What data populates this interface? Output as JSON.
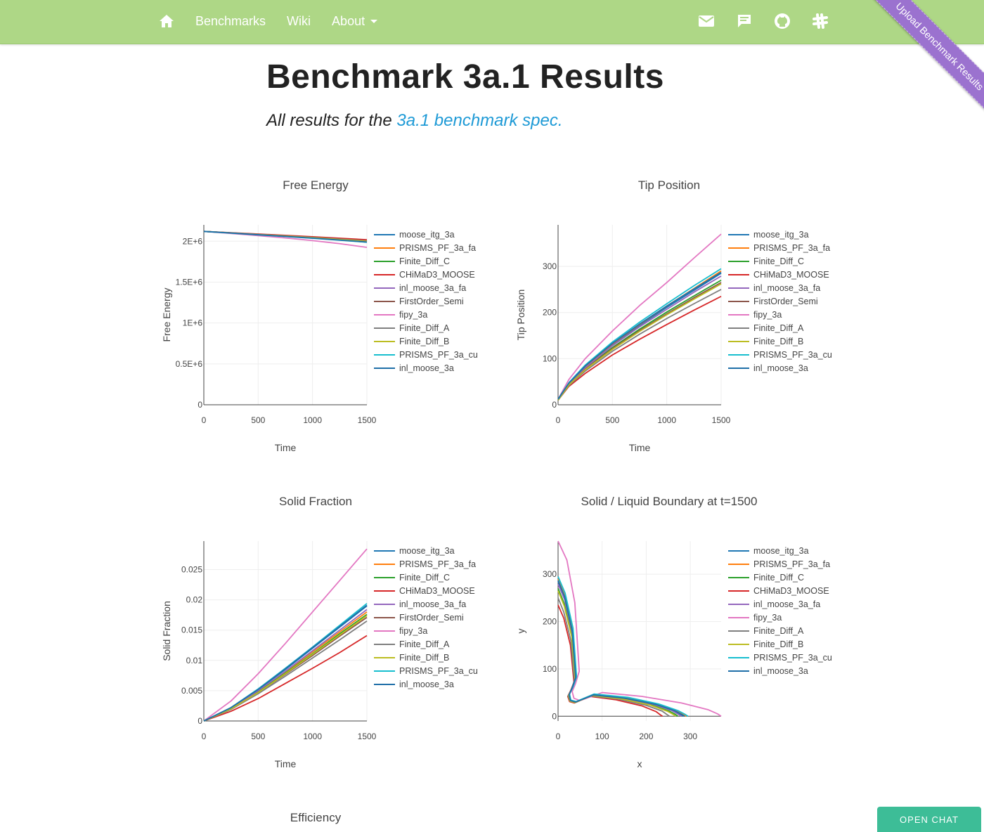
{
  "nav": {
    "home_icon": "home-icon",
    "links": [
      "Benchmarks",
      "Wiki",
      "About"
    ],
    "right_icons": [
      "mail-icon",
      "chat-icon",
      "github-icon",
      "slack-icon"
    ]
  },
  "ribbon": "Upload Benchmark Results",
  "header": {
    "title": "Benchmark 3a.1 Results",
    "subtitle_prefix": "All results for the ",
    "subtitle_link": "3a.1 benchmark spec."
  },
  "chat_button": "OPEN CHAT",
  "efficiency_title": "Efficiency",
  "colors": {
    "moose_itg_3a": "#1f77b4",
    "PRISMS_PF_3a_fa": "#ff7f0e",
    "Finite_Diff_C": "#2ca02c",
    "CHiMaD3_MOOSE": "#d62728",
    "inl_moose_3a_fa": "#9467bd",
    "FirstOrder_Semi": "#8c564b",
    "fipy_3a": "#e377c2",
    "Finite_Diff_A": "#7f7f7f",
    "Finite_Diff_B": "#bcbd22",
    "PRISMS_PF_3a_cu": "#17becf",
    "inl_moose_3a": "#1f6fa8"
  },
  "chart_data": [
    {
      "type": "line",
      "title": "Free Energy",
      "xlabel": "Time",
      "ylabel": "Free Energy",
      "xlim": [
        0,
        1500
      ],
      "ylim": [
        0,
        2200000
      ],
      "xticks": [
        "0",
        "500",
        "1000",
        "1500"
      ],
      "yticks": [
        "0",
        "0.5E+6",
        "1E+6",
        "1.5E+6",
        "2E+6"
      ],
      "legend": [
        "moose_itg_3a",
        "PRISMS_PF_3a_fa",
        "Finite_Diff_C",
        "CHiMaD3_MOOSE",
        "inl_moose_3a_fa",
        "FirstOrder_Semi",
        "fipy_3a",
        "Finite_Diff_A",
        "Finite_Diff_B",
        "PRISMS_PF_3a_cu",
        "inl_moose_3a"
      ],
      "x": [
        0,
        250,
        500,
        750,
        1000,
        1250,
        1500
      ],
      "series": [
        {
          "name": "moose_itg_3a",
          "values": [
            2120000,
            2100000,
            2080000,
            2060000,
            2040000,
            2015000,
            1990000
          ]
        },
        {
          "name": "PRISMS_PF_3a_fa",
          "values": [
            2120000,
            2102000,
            2084000,
            2066000,
            2047000,
            2027000,
            2005000
          ]
        },
        {
          "name": "Finite_Diff_C",
          "values": [
            2120000,
            2101000,
            2082000,
            2063000,
            2043000,
            2022000,
            2000000
          ]
        },
        {
          "name": "CHiMaD3_MOOSE",
          "values": [
            2120000,
            2104000,
            2088000,
            2072000,
            2055000,
            2037000,
            2018000
          ]
        },
        {
          "name": "inl_moose_3a_fa",
          "values": [
            2120000,
            2100000,
            2080000,
            2060000,
            2040000,
            2016000,
            1992000
          ]
        },
        {
          "name": "FirstOrder_Semi",
          "values": [
            2120000,
            2101000,
            2081000,
            2062000,
            2042000,
            2020000,
            1997000
          ]
        },
        {
          "name": "fipy_3a",
          "values": [
            2120000,
            2095000,
            2068000,
            2040000,
            2008000,
            1970000,
            1925000
          ]
        },
        {
          "name": "Finite_Diff_A",
          "values": [
            2120000,
            2102000,
            2083000,
            2065000,
            2046000,
            2026000,
            2004000
          ]
        },
        {
          "name": "Finite_Diff_B",
          "values": [
            2120000,
            2101000,
            2082000,
            2063000,
            2043000,
            2021000,
            1999000
          ]
        },
        {
          "name": "PRISMS_PF_3a_cu",
          "values": [
            2120000,
            2099000,
            2078000,
            2057000,
            2036000,
            2012000,
            1988000
          ]
        },
        {
          "name": "inl_moose_3a",
          "values": [
            2120000,
            2100000,
            2079000,
            2059000,
            2038000,
            2014000,
            1990000
          ]
        }
      ]
    },
    {
      "type": "line",
      "title": "Tip Position",
      "xlabel": "Time",
      "ylabel": "Tip Position",
      "xlim": [
        0,
        1500
      ],
      "ylim": [
        0,
        390
      ],
      "xticks": [
        "0",
        "500",
        "1000",
        "1500"
      ],
      "yticks": [
        "0",
        "100",
        "200",
        "300"
      ],
      "legend": [
        "moose_itg_3a",
        "PRISMS_PF_3a_fa",
        "Finite_Diff_C",
        "CHiMaD3_MOOSE",
        "inl_moose_3a_fa",
        "FirstOrder_Semi",
        "fipy_3a",
        "Finite_Diff_A",
        "Finite_Diff_B",
        "PRISMS_PF_3a_cu",
        "inl_moose_3a"
      ],
      "x": [
        0,
        100,
        250,
        500,
        750,
        1000,
        1250,
        1500
      ],
      "series": [
        {
          "name": "moose_itg_3a",
          "values": [
            10,
            45,
            82,
            130,
            172,
            211,
            248,
            285
          ]
        },
        {
          "name": "PRISMS_PF_3a_fa",
          "values": [
            10,
            46,
            83,
            132,
            174,
            214,
            252,
            290
          ]
        },
        {
          "name": "Finite_Diff_C",
          "values": [
            10,
            44,
            78,
            124,
            164,
            201,
            236,
            270
          ]
        },
        {
          "name": "CHiMaD3_MOOSE",
          "values": [
            10,
            40,
            68,
            108,
            142,
            174,
            205,
            235
          ]
        },
        {
          "name": "inl_moose_3a_fa",
          "values": [
            10,
            45,
            80,
            128,
            169,
            207,
            244,
            279
          ]
        },
        {
          "name": "FirstOrder_Semi",
          "values": [
            10,
            43,
            77,
            122,
            161,
            197,
            232,
            265
          ]
        },
        {
          "name": "fipy_3a",
          "values": [
            12,
            55,
            100,
            160,
            215,
            265,
            318,
            370
          ]
        },
        {
          "name": "Finite_Diff_A",
          "values": [
            10,
            42,
            73,
            116,
            153,
            187,
            219,
            250
          ]
        },
        {
          "name": "Finite_Diff_B",
          "values": [
            10,
            43,
            76,
            120,
            159,
            195,
            229,
            262
          ]
        },
        {
          "name": "PRISMS_PF_3a_cu",
          "values": [
            12,
            48,
            86,
            136,
            179,
            219,
            258,
            295
          ]
        },
        {
          "name": "inl_moose_3a",
          "values": [
            12,
            47,
            84,
            133,
            175,
            214,
            251,
            287
          ]
        }
      ]
    },
    {
      "type": "line",
      "title": "Solid Fraction",
      "xlabel": "Time",
      "ylabel": "Solid Fraction",
      "xlim": [
        0,
        1500
      ],
      "ylim": [
        0,
        0.0297
      ],
      "xticks": [
        "0",
        "500",
        "1000",
        "1500"
      ],
      "yticks": [
        "0",
        "0.005",
        "0.01",
        "0.015",
        "0.02",
        "0.025"
      ],
      "legend": [
        "moose_itg_3a",
        "PRISMS_PF_3a_fa",
        "Finite_Diff_C",
        "CHiMaD3_MOOSE",
        "inl_moose_3a_fa",
        "FirstOrder_Semi",
        "fipy_3a",
        "Finite_Diff_A",
        "Finite_Diff_B",
        "PRISMS_PF_3a_cu",
        "inl_moose_3a"
      ],
      "x": [
        0,
        250,
        500,
        750,
        1000,
        1250,
        1500
      ],
      "series": [
        {
          "name": "moose_itg_3a",
          "values": [
            0,
            0.0022,
            0.0052,
            0.0085,
            0.012,
            0.0155,
            0.019
          ]
        },
        {
          "name": "PRISMS_PF_3a_fa",
          "values": [
            0,
            0.0021,
            0.0049,
            0.0081,
            0.0114,
            0.0147,
            0.018
          ]
        },
        {
          "name": "Finite_Diff_C",
          "values": [
            0,
            0.002,
            0.0048,
            0.0079,
            0.0111,
            0.0144,
            0.0176
          ]
        },
        {
          "name": "CHiMaD3_MOOSE",
          "values": [
            0,
            0.0016,
            0.0037,
            0.0062,
            0.0087,
            0.0113,
            0.0141
          ]
        },
        {
          "name": "inl_moose_3a_fa",
          "values": [
            0,
            0.0021,
            0.005,
            0.0082,
            0.0116,
            0.015,
            0.0184
          ]
        },
        {
          "name": "FirstOrder_Semi",
          "values": [
            0,
            0.002,
            0.0047,
            0.0077,
            0.0108,
            0.014,
            0.0171
          ]
        },
        {
          "name": "fipy_3a",
          "values": [
            0,
            0.0033,
            0.0078,
            0.0128,
            0.018,
            0.0232,
            0.0284
          ]
        },
        {
          "name": "Finite_Diff_A",
          "values": [
            0,
            0.0019,
            0.0045,
            0.0074,
            0.0104,
            0.0134,
            0.0165
          ]
        },
        {
          "name": "Finite_Diff_B",
          "values": [
            0,
            0.002,
            0.0047,
            0.0078,
            0.011,
            0.0142,
            0.0174
          ]
        },
        {
          "name": "PRISMS_PF_3a_cu",
          "values": [
            0,
            0.0022,
            0.0053,
            0.0087,
            0.0122,
            0.0158,
            0.0194
          ]
        },
        {
          "name": "inl_moose_3a",
          "values": [
            0,
            0.0022,
            0.0052,
            0.0086,
            0.0121,
            0.0156,
            0.0191
          ]
        }
      ]
    },
    {
      "type": "line",
      "title": "Solid / Liquid Boundary at t=1500",
      "xlabel": "x",
      "ylabel": "y",
      "xlim": [
        0,
        370
      ],
      "ylim": [
        -10,
        370
      ],
      "xticks": [
        "0",
        "100",
        "200",
        "300"
      ],
      "yticks": [
        "0",
        "100",
        "200",
        "300"
      ],
      "legend": [
        "moose_itg_3a",
        "PRISMS_PF_3a_fa",
        "Finite_Diff_C",
        "CHiMaD3_MOOSE",
        "inl_moose_3a_fa",
        "fipy_3a",
        "Finite_Diff_A",
        "Finite_Diff_B",
        "PRISMS_PF_3a_cu",
        "inl_moose_3a"
      ],
      "series": [
        {
          "name": "moose_itg_3a",
          "x": [
            0,
            15,
            32,
            40,
            32,
            25,
            28,
            40,
            80,
            150,
            220,
            262,
            278,
            285
          ],
          "y": [
            285,
            250,
            180,
            80,
            60,
            45,
            33,
            30,
            45,
            38,
            25,
            12,
            4,
            0
          ]
        },
        {
          "name": "PRISMS_PF_3a_fa",
          "x": [
            0,
            15,
            33,
            41,
            33,
            25,
            28,
            40,
            80,
            155,
            225,
            268,
            284,
            291
          ],
          "y": [
            290,
            255,
            183,
            82,
            61,
            46,
            34,
            30,
            46,
            39,
            26,
            12,
            4,
            0
          ]
        },
        {
          "name": "Finite_Diff_C",
          "x": [
            0,
            14,
            31,
            39,
            31,
            24,
            27,
            39,
            78,
            145,
            212,
            252,
            266,
            272
          ],
          "y": [
            270,
            238,
            172,
            78,
            58,
            44,
            32,
            29,
            44,
            37,
            24,
            11,
            4,
            0
          ]
        },
        {
          "name": "CHiMaD3_MOOSE",
          "x": [
            0,
            13,
            28,
            36,
            29,
            22,
            26,
            37,
            72,
            130,
            190,
            222,
            232,
            237
          ],
          "y": [
            235,
            207,
            150,
            72,
            55,
            42,
            31,
            28,
            42,
            35,
            22,
            10,
            3,
            0
          ]
        },
        {
          "name": "inl_moose_3a_fa",
          "x": [
            0,
            15,
            32,
            40,
            32,
            25,
            28,
            40,
            79,
            148,
            217,
            258,
            273,
            280
          ],
          "y": [
            279,
            246,
            177,
            80,
            59,
            45,
            33,
            30,
            45,
            38,
            25,
            12,
            4,
            0
          ]
        },
        {
          "name": "fipy_3a",
          "x": [
            0,
            20,
            38,
            48,
            40,
            32,
            36,
            50,
            100,
            190,
            280,
            340,
            362,
            370
          ],
          "y": [
            370,
            330,
            240,
            95,
            70,
            52,
            38,
            33,
            50,
            42,
            28,
            14,
            5,
            0
          ]
        },
        {
          "name": "Finite_Diff_A",
          "x": [
            0,
            13,
            29,
            37,
            30,
            23,
            27,
            38,
            75,
            138,
            200,
            236,
            248,
            253
          ],
          "y": [
            250,
            220,
            160,
            75,
            56,
            43,
            32,
            29,
            43,
            36,
            23,
            11,
            3,
            0
          ]
        },
        {
          "name": "Finite_Diff_B",
          "x": [
            0,
            14,
            31,
            39,
            31,
            24,
            27,
            39,
            77,
            142,
            208,
            247,
            261,
            267
          ],
          "y": [
            265,
            233,
            168,
            77,
            57,
            44,
            32,
            29,
            44,
            37,
            24,
            11,
            4,
            0
          ]
        },
        {
          "name": "PRISMS_PF_3a_cu",
          "x": [
            0,
            16,
            34,
            42,
            34,
            26,
            29,
            41,
            82,
            158,
            228,
            272,
            288,
            295
          ],
          "y": [
            295,
            260,
            186,
            83,
            62,
            47,
            34,
            31,
            47,
            40,
            26,
            12,
            4,
            0
          ]
        },
        {
          "name": "inl_moose_3a",
          "x": [
            0,
            15,
            32,
            40,
            32,
            25,
            28,
            40,
            80,
            151,
            222,
            264,
            280,
            287
          ],
          "y": [
            287,
            252,
            181,
            81,
            60,
            45,
            33,
            30,
            45,
            38,
            25,
            12,
            4,
            0
          ]
        }
      ]
    }
  ]
}
